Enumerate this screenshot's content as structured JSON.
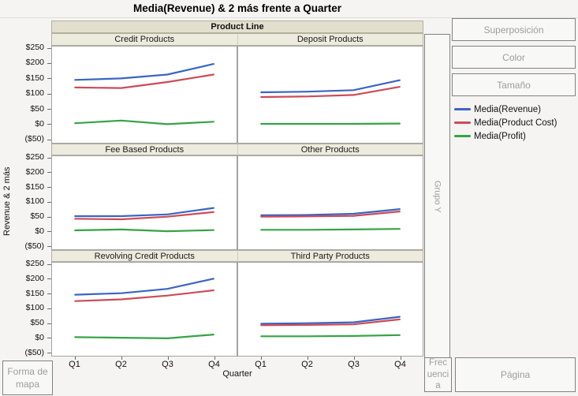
{
  "window": {
    "title": "Media(Revenue) & 2 más frente a Quarter"
  },
  "drop_zones": {
    "overlay": "Superposición",
    "color": "Color",
    "size": "Tamaño",
    "group_y": "Grupo Y",
    "map_shape": "Forma de mapa",
    "frequency": "Frecuencia",
    "page": "Página"
  },
  "legend": {
    "items": [
      {
        "label": "Media(Revenue)",
        "color": "#3a65c2"
      },
      {
        "label": "Media(Product Cost)",
        "color": "#cc4b58"
      },
      {
        "label": "Media(Profit)",
        "color": "#35a345"
      }
    ]
  },
  "chart_data": {
    "type": "line",
    "title": "Media(Revenue) & 2 más frente a Quarter",
    "trellis": {
      "group_header": "Product Line",
      "rows": 3,
      "cols": 2
    },
    "xlabel": "Quarter",
    "ylabel": "Revenue & 2 más",
    "x_categories": [
      "Q1",
      "Q2",
      "Q3",
      "Q4"
    ],
    "y_ticks": [
      {
        "value": 250,
        "label": "$250"
      },
      {
        "value": 200,
        "label": "$200"
      },
      {
        "value": 150,
        "label": "$150"
      },
      {
        "value": 100,
        "label": "$100"
      },
      {
        "value": 50,
        "label": "$50"
      },
      {
        "value": 0,
        "label": "$0"
      },
      {
        "value": -50,
        "label": "($50)"
      }
    ],
    "ylim": [
      -62,
      258
    ],
    "grid": false,
    "legend_position": "right",
    "series_names": [
      "Media(Revenue)",
      "Media(Product Cost)",
      "Media(Profit)"
    ],
    "series_colors": [
      "#3a65c2",
      "#cc4b58",
      "#35a345"
    ],
    "panels": [
      {
        "title": "Credit Products",
        "series": [
          {
            "name": "Media(Revenue)",
            "values": [
              147,
              152,
              165,
              200
            ]
          },
          {
            "name": "Media(Product Cost)",
            "values": [
              122,
              120,
              140,
              165
            ]
          },
          {
            "name": "Media(Profit)",
            "values": [
              3,
              12,
              0,
              8
            ]
          }
        ]
      },
      {
        "title": "Deposit Products",
        "series": [
          {
            "name": "Media(Revenue)",
            "values": [
              106,
              108,
              113,
              146
            ]
          },
          {
            "name": "Media(Product Cost)",
            "values": [
              90,
              92,
              97,
              124
            ]
          },
          {
            "name": "Media(Profit)",
            "values": [
              1,
              1,
              1,
              2
            ]
          }
        ]
      },
      {
        "title": "Fee Based Products",
        "series": [
          {
            "name": "Media(Revenue)",
            "values": [
              52,
              52,
              58,
              80
            ]
          },
          {
            "name": "Media(Product Cost)",
            "values": [
              43,
              41,
              50,
              66
            ]
          },
          {
            "name": "Media(Profit)",
            "values": [
              3,
              6,
              0,
              4
            ]
          }
        ]
      },
      {
        "title": "Other Products",
        "series": [
          {
            "name": "Media(Revenue)",
            "values": [
              55,
              56,
              60,
              76
            ]
          },
          {
            "name": "Media(Product Cost)",
            "values": [
              50,
              51,
              53,
              68
            ]
          },
          {
            "name": "Media(Profit)",
            "values": [
              5,
              5,
              6,
              8
            ]
          }
        ]
      },
      {
        "title": "Revolving Credit Products",
        "series": [
          {
            "name": "Media(Revenue)",
            "values": [
              148,
              153,
              168,
              203
            ]
          },
          {
            "name": "Media(Product Cost)",
            "values": [
              126,
              132,
              145,
              163
            ]
          },
          {
            "name": "Media(Profit)",
            "values": [
              2,
              0,
              -2,
              11
            ]
          }
        ]
      },
      {
        "title": "Third Party Products",
        "series": [
          {
            "name": "Media(Revenue)",
            "values": [
              48,
              50,
              53,
              72
            ]
          },
          {
            "name": "Media(Product Cost)",
            "values": [
              43,
              44,
              46,
              63
            ]
          },
          {
            "name": "Media(Profit)",
            "values": [
              5,
              5,
              6,
              9
            ]
          }
        ]
      }
    ]
  }
}
